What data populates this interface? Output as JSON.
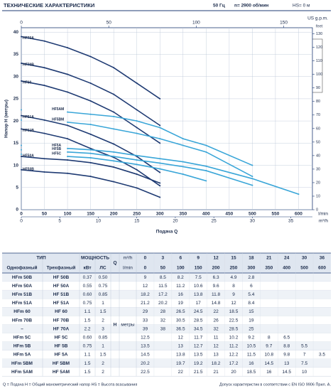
{
  "header": {
    "title": "ТЕХНИЧЕСКИЕ ХАРАКТЕРИСТИКИ",
    "freq": "50 Гц",
    "speed": "n= 2900 об/мин",
    "hs": "HS= 0 м"
  },
  "chart_data": {
    "type": "line",
    "y_label": "Напор H (метры)",
    "x_label": "Подача Q",
    "x_unit": "l/min",
    "x": [
      0,
      50,
      100,
      150,
      200,
      250,
      300,
      350,
      400,
      500,
      600
    ],
    "xlim": [
      0,
      630
    ],
    "xticks": [
      0,
      50,
      100,
      150,
      200,
      250,
      300,
      350,
      400,
      450,
      500,
      550,
      600
    ],
    "ylim": [
      0,
      41
    ],
    "yticks": [
      0,
      5,
      10,
      15,
      20,
      25,
      30,
      35,
      40
    ],
    "x2_label": "US g.p.m.",
    "x2lim": [
      0,
      166.4
    ],
    "x2ticks": [
      0,
      50,
      100,
      150
    ],
    "x3_label": "m³/h",
    "x3lim": [
      0,
      37.8
    ],
    "x3ticks": [
      0,
      5,
      10,
      15,
      20,
      25,
      30,
      35
    ],
    "y2_label": "feet",
    "y2lim": [
      0,
      134.5
    ],
    "y2ticks": [
      0,
      10,
      20,
      30,
      40,
      50,
      60,
      70,
      80,
      90,
      100,
      110,
      120,
      130
    ],
    "grid": true,
    "series": [
      {
        "name": "HF50B",
        "color": "#1f3b73",
        "values": [
          9,
          8.5,
          8.2,
          7.5,
          6.3,
          4.9,
          2.8,
          null,
          null,
          null,
          null
        ]
      },
      {
        "name": "HF50A",
        "color": "#1f3b73",
        "values": [
          12,
          11.5,
          11.2,
          10.6,
          9.6,
          8,
          6,
          null,
          null,
          null,
          null
        ]
      },
      {
        "name": "HF51B",
        "color": "#1f3b73",
        "values": [
          18.2,
          17.2,
          16,
          13.8,
          11.8,
          9,
          5.4,
          null,
          null,
          null,
          null
        ]
      },
      {
        "name": "HF51A",
        "color": "#1f3b73",
        "values": [
          21.2,
          20.2,
          19,
          17,
          14.8,
          12,
          8.4,
          null,
          null,
          null,
          null
        ]
      },
      {
        "name": "HF60",
        "color": "#1f3b73",
        "values": [
          29,
          28,
          26.5,
          24.5,
          22,
          18.5,
          15,
          null,
          null,
          null,
          null
        ]
      },
      {
        "name": "HF70B",
        "color": "#1f3b73",
        "values": [
          33,
          32,
          30.5,
          28.5,
          26,
          22.5,
          19,
          null,
          null,
          null,
          null
        ]
      },
      {
        "name": "HF70A",
        "color": "#1f3b73",
        "values": [
          39,
          38,
          36.5,
          34.5,
          32,
          28.5,
          25,
          null,
          null,
          null,
          null
        ]
      },
      {
        "name": "HF5C",
        "color": "#3aa6d8",
        "values": [
          12.5,
          null,
          12,
          11.7,
          11,
          10.2,
          9.2,
          8,
          6.5,
          null,
          null
        ]
      },
      {
        "name": "HF5B",
        "color": "#3aa6d8",
        "values": [
          13.5,
          null,
          13,
          12.7,
          12,
          11.2,
          10.5,
          9.7,
          8.8,
          5.5,
          null
        ]
      },
      {
        "name": "HF5A",
        "color": "#3aa6d8",
        "values": [
          14.5,
          null,
          13.8,
          13.5,
          13,
          12.2,
          11.5,
          10.8,
          9.8,
          7,
          3.5
        ]
      },
      {
        "name": "HF5BM",
        "color": "#3aa6d8",
        "values": [
          20.2,
          null,
          19.7,
          19.2,
          18.2,
          17.2,
          16,
          14.5,
          13,
          7.5,
          null
        ]
      },
      {
        "name": "HF5AM",
        "color": "#3aa6d8",
        "values": [
          22.5,
          null,
          22,
          21.5,
          21,
          20,
          18.5,
          16,
          14.5,
          10,
          null
        ]
      }
    ]
  },
  "table": {
    "type_header": "ТИП",
    "power_header": "МОЩНОСТЬ",
    "single_header": "Однофазный",
    "three_header": "Трехфазный",
    "kw": "кВт",
    "hp": "ЛС",
    "q": "Q",
    "m3h_unit": "m³/h",
    "lmin_unit": "l/min",
    "h": "H",
    "h_unit": "метры",
    "q_m3h": [
      0,
      3,
      6,
      9,
      12,
      15,
      18,
      21,
      24,
      30,
      36
    ],
    "rows": [
      [
        "HFm 50B",
        "HF 50B",
        "0.37",
        "0.50"
      ],
      [
        "HFm 50A",
        "HF 50A",
        "0.55",
        "0.75"
      ],
      [
        "HFm 51B",
        "HF 51B",
        "0.60",
        "0.85"
      ],
      [
        "HFm 51A",
        "HF 51A",
        "0.75",
        "1"
      ],
      [
        "HFm 60",
        "HF 60",
        "1.1",
        "1.5"
      ],
      [
        "HFm 70B",
        "HF 70B",
        "1.5",
        "2"
      ],
      [
        "–",
        "HF 70A",
        "2.2",
        "3"
      ],
      [
        "HFm 5C",
        "HF 5C",
        "0.60",
        "0.85"
      ],
      [
        "HFm 5B",
        "HF 5B",
        "0.75",
        "1"
      ],
      [
        "HFm 5A",
        "HF 5A",
        "1.1",
        "1.5"
      ],
      [
        "HFm 5BM",
        "HF 5BM",
        "1.5",
        "2"
      ],
      [
        "HFm 5AM",
        "HF 5AM",
        "1.5",
        "2"
      ]
    ]
  },
  "footer": {
    "legend": "Q = Подача  H = Общий манометрический напор  HS = Высота всасывания",
    "tolerance": "Допуск характеристик в соответствии с EN ISO 9906 Прил. A."
  }
}
